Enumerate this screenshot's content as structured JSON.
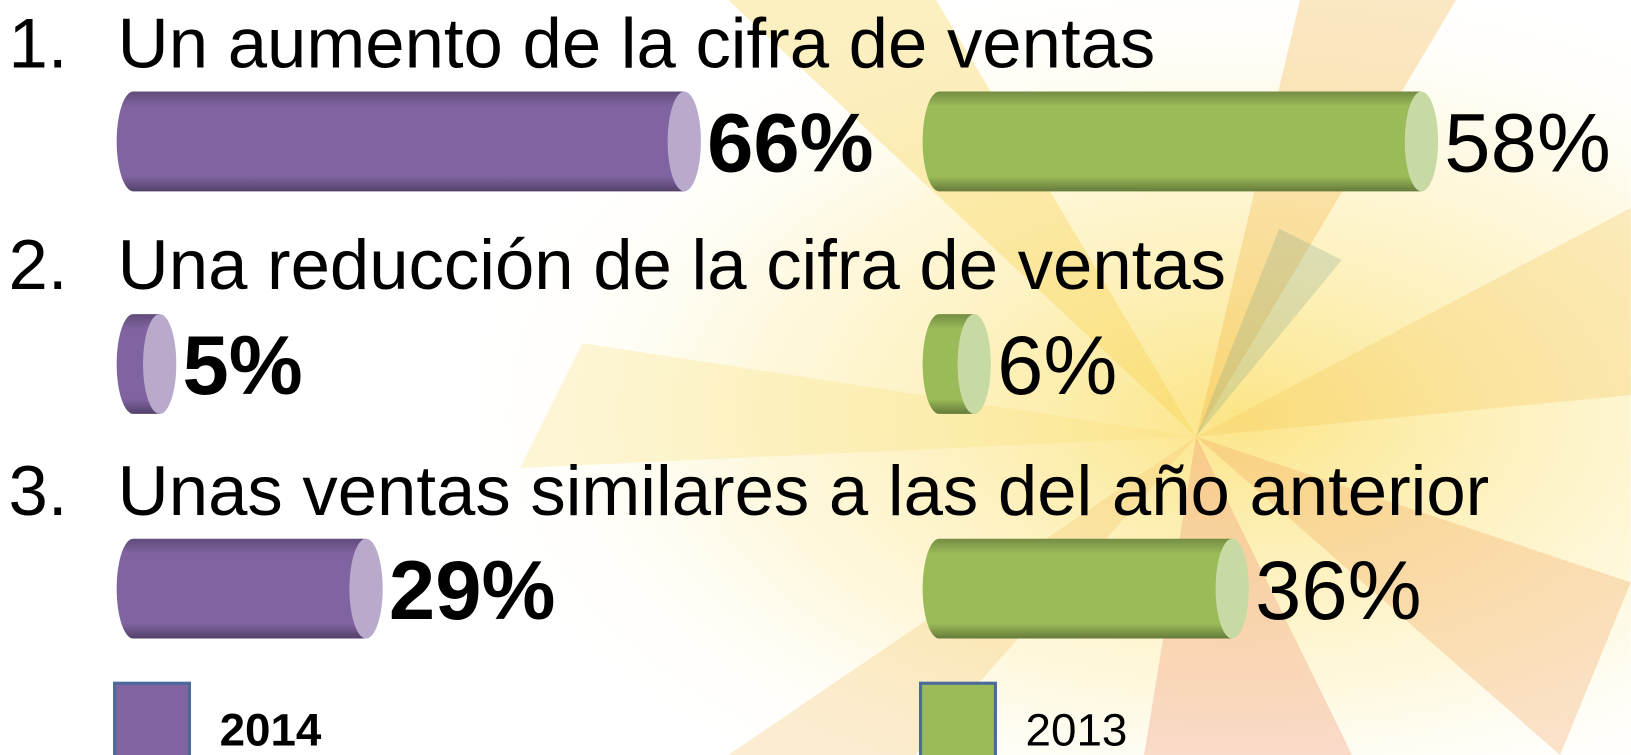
{
  "chart_data": {
    "type": "bar",
    "orientation": "horizontal",
    "category_markers": [
      "1.",
      "2.",
      "3."
    ],
    "categories": [
      "Un aumento de la cifra de ventas",
      "Una reducción de la cifra de ventas",
      "Unas ventas similares a las del año anterior"
    ],
    "series": [
      {
        "name": "2014",
        "color": "#8064a2",
        "label_weight": "bold",
        "values": [
          66,
          5,
          29
        ],
        "value_labels": [
          "66%",
          "5%",
          "29%"
        ]
      },
      {
        "name": "2013",
        "color": "#9bbb59",
        "label_weight": "normal",
        "values": [
          58,
          6,
          36
        ],
        "value_labels": [
          "58%",
          "6%",
          "36%"
        ]
      }
    ],
    "xlim": [
      0,
      100
    ],
    "grid": false
  }
}
